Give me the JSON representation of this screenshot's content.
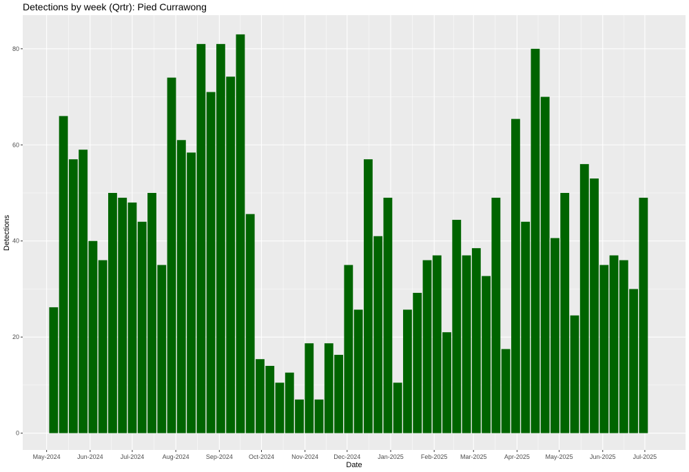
{
  "chart_data": {
    "type": "bar",
    "title": "Detections by week (Qrtr): Pied Currawong",
    "xlabel": "Date",
    "ylabel": "Detections",
    "ylim": [
      -3.5,
      87
    ],
    "yticks": [
      0,
      20,
      40,
      60,
      80
    ],
    "xlim": [
      "2024-04-14",
      "2025-07-30"
    ],
    "xticks": [
      {
        "date": "2024-05-01",
        "label": "May-2024"
      },
      {
        "date": "2024-06-01",
        "label": "Jun-2024"
      },
      {
        "date": "2024-07-01",
        "label": "Jul-2024"
      },
      {
        "date": "2024-08-01",
        "label": "Aug-2024"
      },
      {
        "date": "2024-09-01",
        "label": "Sep-2024"
      },
      {
        "date": "2024-10-01",
        "label": "Oct-2024"
      },
      {
        "date": "2024-11-01",
        "label": "Nov-2024"
      },
      {
        "date": "2024-12-01",
        "label": "Dec-2024"
      },
      {
        "date": "2025-01-01",
        "label": "Jan-2025"
      },
      {
        "date": "2025-02-01",
        "label": "Feb-2025"
      },
      {
        "date": "2025-03-01",
        "label": "Mar-2025"
      },
      {
        "date": "2025-04-01",
        "label": "Apr-2025"
      },
      {
        "date": "2025-05-01",
        "label": "May-2025"
      },
      {
        "date": "2025-06-01",
        "label": "Jun-2025"
      },
      {
        "date": "2025-07-01",
        "label": "Jul-2025"
      }
    ],
    "x": [
      "2024-05-06",
      "2024-05-13",
      "2024-05-20",
      "2024-05-27",
      "2024-06-03",
      "2024-06-10",
      "2024-06-17",
      "2024-06-24",
      "2024-07-01",
      "2024-07-08",
      "2024-07-15",
      "2024-07-22",
      "2024-07-29",
      "2024-08-05",
      "2024-08-12",
      "2024-08-19",
      "2024-08-26",
      "2024-09-02",
      "2024-09-09",
      "2024-09-16",
      "2024-09-23",
      "2024-09-30",
      "2024-10-07",
      "2024-10-14",
      "2024-10-21",
      "2024-10-28",
      "2024-11-04",
      "2024-11-11",
      "2024-11-18",
      "2024-11-25",
      "2024-12-02",
      "2024-12-09",
      "2024-12-16",
      "2024-12-23",
      "2024-12-30",
      "2025-01-06",
      "2025-01-13",
      "2025-01-20",
      "2025-01-27",
      "2025-02-03",
      "2025-02-10",
      "2025-02-17",
      "2025-02-24",
      "2025-03-03",
      "2025-03-10",
      "2025-03-17",
      "2025-03-24",
      "2025-03-31",
      "2025-04-07",
      "2025-04-14",
      "2025-04-21",
      "2025-04-28",
      "2025-05-05",
      "2025-05-12",
      "2025-05-19",
      "2025-05-26",
      "2025-06-02",
      "2025-06-09",
      "2025-06-16",
      "2025-06-23",
      "2025-06-30"
    ],
    "values": [
      26.2,
      66,
      57,
      59,
      40,
      36,
      50,
      49,
      48,
      44,
      50,
      35,
      74,
      61,
      58.4,
      81,
      71,
      81,
      74.2,
      83,
      45.6,
      15.4,
      14,
      10.5,
      12.6,
      7,
      18.7,
      7,
      18.7,
      16.3,
      35,
      25.7,
      57,
      41,
      49,
      10.5,
      25.7,
      29.2,
      36,
      37,
      21,
      44.4,
      37,
      38.5,
      32.7,
      49,
      17.5,
      65.4,
      44,
      80,
      70,
      40.6,
      50,
      24.5,
      56,
      53,
      35,
      37,
      36,
      30,
      49
    ],
    "bar_color": "#006400",
    "panel_background": "#ebebeb",
    "grid": true,
    "legend": "none"
  }
}
